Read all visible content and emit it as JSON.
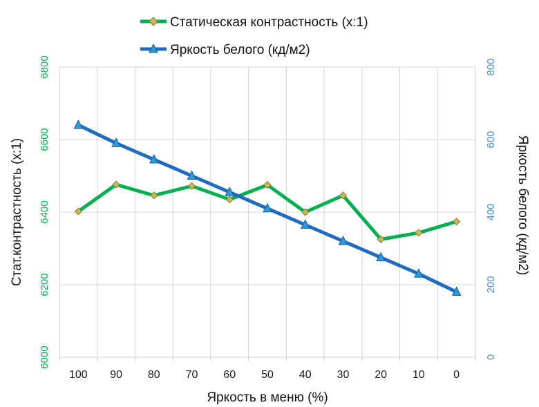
{
  "chart_data": {
    "type": "line",
    "x_categories": [
      "100",
      "90",
      "80",
      "70",
      "60",
      "50",
      "40",
      "30",
      "20",
      "10",
      "0"
    ],
    "series": [
      {
        "name": "Статическая контрастность (x:1)",
        "axis": "left",
        "color": "#00b050",
        "marker": "diamond",
        "marker_color": "#c4b95a",
        "values": [
          6402,
          6476,
          6446,
          6472,
          6435,
          6475,
          6400,
          6446,
          6325,
          6343,
          6374
        ]
      },
      {
        "name": "Яркость белого (кд/м2)",
        "axis": "right",
        "color": "#1f6bbf",
        "marker": "triangle",
        "marker_color": "#2b9ad9",
        "values": [
          640,
          590,
          545,
          500,
          455,
          410,
          365,
          320,
          275,
          230,
          180
        ]
      }
    ],
    "y_left": {
      "label": "Стат.контрастность  (x:1)",
      "min": 6000,
      "max": 6800,
      "ticks": [
        "6000",
        "6200",
        "6400",
        "6600",
        "6800"
      ]
    },
    "y_right": {
      "label": "Яркость белого (кд/м2)",
      "min": 0,
      "max": 800,
      "ticks": [
        "0",
        "200",
        "400",
        "600",
        "800"
      ]
    },
    "xlabel": "Яркость в меню (%)",
    "grid": true,
    "legend_position": "top"
  }
}
